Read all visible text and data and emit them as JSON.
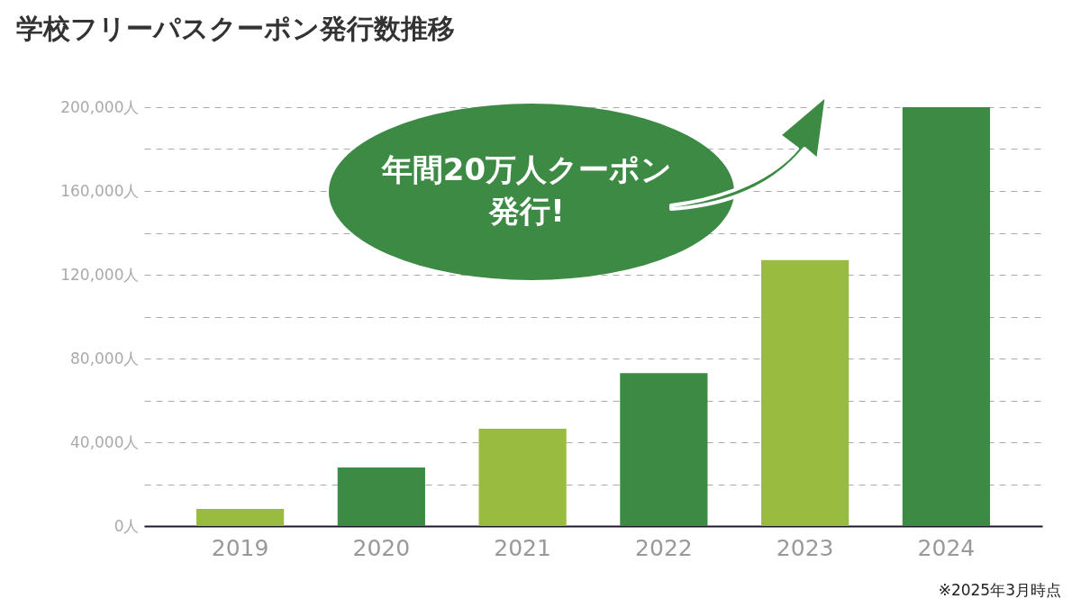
{
  "chart_data": {
    "type": "bar",
    "title": "学校フリーパスクーポン発行数推移",
    "categories": [
      "2019",
      "2020",
      "2021",
      "2022",
      "2023",
      "2024"
    ],
    "values": [
      8200,
      28000,
      46500,
      73000,
      127000,
      200000
    ],
    "colors": [
      "#99bb3f",
      "#3d8a45",
      "#99bb3f",
      "#3d8a45",
      "#99bb3f",
      "#3d8a45"
    ],
    "ylim": [
      0,
      200000
    ],
    "yticks": [
      {
        "value": 0,
        "label": "0人"
      },
      {
        "value": 20000,
        "label": null
      },
      {
        "value": 40000,
        "label": "40,000人"
      },
      {
        "value": 60000,
        "label": null
      },
      {
        "value": 80000,
        "label": "80,000人"
      },
      {
        "value": 100000,
        "label": null
      },
      {
        "value": 120000,
        "label": "120,000人"
      },
      {
        "value": 140000,
        "label": null
      },
      {
        "value": 160000,
        "label": "160,000人"
      },
      {
        "value": 180000,
        "label": null
      },
      {
        "value": 200000,
        "label": "200,000人"
      }
    ],
    "grid": "y",
    "annotations": [
      "年間20万人クーポン発行!",
      "※2025年3月時点"
    ]
  }
}
